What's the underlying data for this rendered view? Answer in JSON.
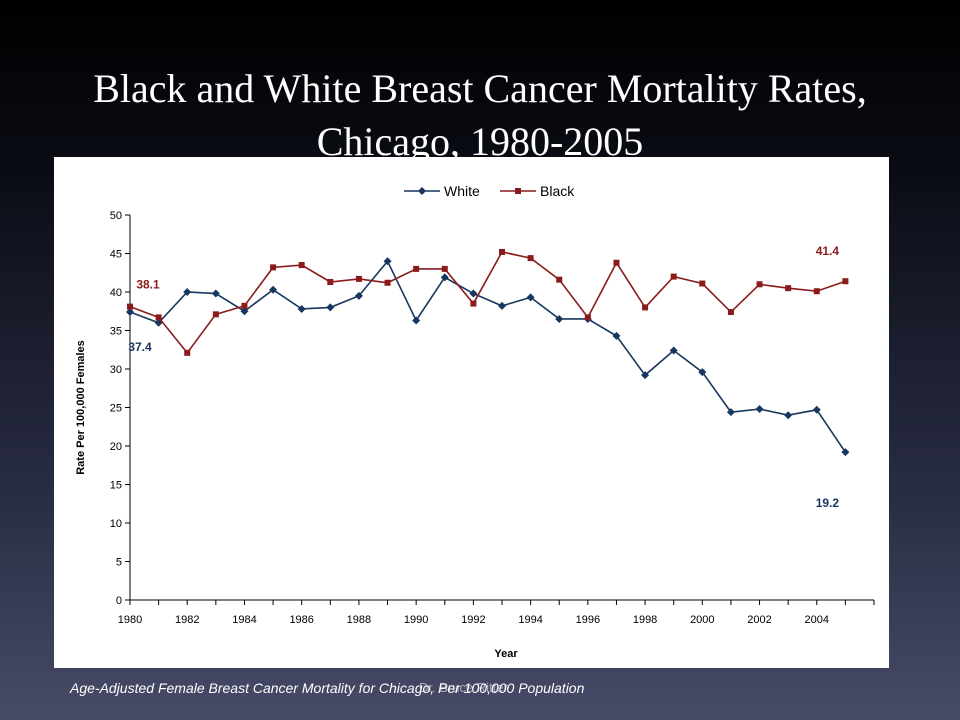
{
  "slide": {
    "title_line1": "Black and White Breast Cancer Mortality Rates,",
    "title_line2": "Chicago, 1980-2005",
    "caption": "Age-Adjusted Female Breast Cancer Mortality for Chicago, Per 100,000 Population",
    "overlay_text": "Dr. Bruce Ritter"
  },
  "chart_data": {
    "type": "line",
    "xlabel": "Year",
    "ylabel": "Rate Per 100,000 Females",
    "x": [
      1980,
      1981,
      1982,
      1983,
      1984,
      1985,
      1986,
      1987,
      1988,
      1989,
      1990,
      1991,
      1992,
      1993,
      1994,
      1995,
      1996,
      1997,
      1998,
      1999,
      2000,
      2001,
      2002,
      2003,
      2004,
      2005
    ],
    "x_ticks": [
      "1980",
      "1982",
      "1984",
      "1986",
      "1988",
      "1990",
      "1992",
      "1994",
      "1996",
      "1998",
      "2000",
      "2002",
      "2004"
    ],
    "xlim": [
      1980,
      2006
    ],
    "ylim": [
      0,
      50
    ],
    "y_ticks": [
      0,
      5,
      10,
      15,
      20,
      25,
      30,
      35,
      40,
      45,
      50
    ],
    "legend_position": "top-center",
    "grid": false,
    "series": [
      {
        "name": "White",
        "color": "#17375e",
        "marker": "diamond",
        "values": [
          37.4,
          36.0,
          40.0,
          39.8,
          37.5,
          40.3,
          37.8,
          38.0,
          39.5,
          44.0,
          36.3,
          41.9,
          39.8,
          38.2,
          39.3,
          36.5,
          36.5,
          34.3,
          29.2,
          32.4,
          29.6,
          24.4,
          24.8,
          24.0,
          24.7,
          19.2
        ],
        "annotations": [
          {
            "index": 0,
            "text": "37.4"
          },
          {
            "index": 25,
            "text": "19.2"
          }
        ]
      },
      {
        "name": "Black",
        "color": "#8b1a1a",
        "marker": "square",
        "values": [
          38.1,
          36.7,
          32.1,
          37.1,
          38.2,
          43.2,
          43.5,
          41.3,
          41.7,
          41.2,
          43.0,
          43.0,
          38.5,
          45.2,
          44.4,
          41.6,
          36.7,
          43.8,
          38.0,
          42.0,
          41.1,
          37.4,
          41.0,
          40.5,
          40.1,
          41.4
        ],
        "annotations": [
          {
            "index": 0,
            "text": "38.1"
          },
          {
            "index": 25,
            "text": "41.4"
          }
        ]
      }
    ]
  }
}
